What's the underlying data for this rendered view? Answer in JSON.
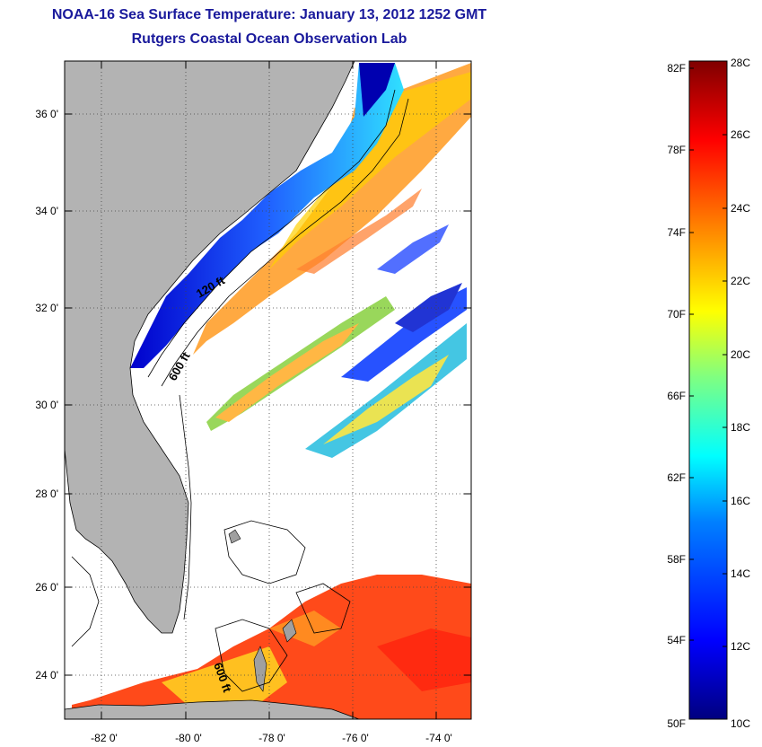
{
  "header": {
    "title_line1": "NOAA-16 Sea Surface Temperature:  January 13, 2012 1252 GMT",
    "title_line2": "Rutgers Coastal Ocean Observation Lab"
  },
  "map": {
    "lat_labels": [
      "36 0'",
      "34 0'",
      "32 0'",
      "30 0'",
      "28 0'",
      "26 0'",
      "24 0'"
    ],
    "lon_labels": [
      "-82 0'",
      "-80 0'",
      "-78 0'",
      "-76 0'",
      "-74 0'"
    ],
    "contour_labels": [
      "120 ft",
      "600 ft",
      "600 ft"
    ],
    "land_color": "#b3b3b3"
  },
  "colorbar": {
    "fahrenheit_labels": [
      "82F",
      "78F",
      "74F",
      "70F",
      "66F",
      "62F",
      "58F",
      "54F",
      "50F"
    ],
    "celsius_labels": [
      "28C",
      "26C",
      "24C",
      "22C",
      "20C",
      "18C",
      "16C",
      "14C",
      "12C",
      "10C"
    ],
    "range_c": [
      10,
      28
    ],
    "colors_low_to_high": [
      "#00007f",
      "#0000ff",
      "#0080ff",
      "#00ffff",
      "#80ff80",
      "#ffff00",
      "#ff8000",
      "#ff0000",
      "#7f0000"
    ]
  }
}
